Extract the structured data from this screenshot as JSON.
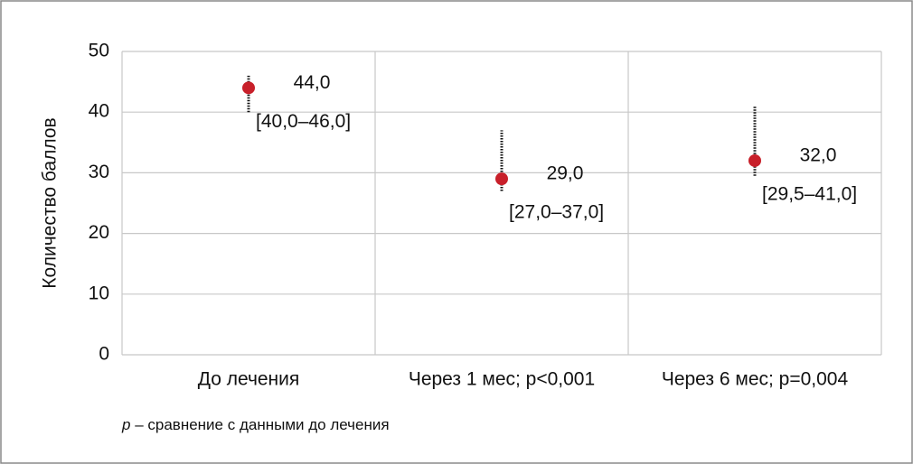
{
  "chart_data": {
    "type": "range-point",
    "ylabel": "Количество баллов",
    "categories": [
      "До лечения",
      "Через 1 мес; p<0,001",
      "Через 6 мес; p=0,004"
    ],
    "values": [
      44,
      29,
      32
    ],
    "value_labels": [
      "44,0",
      "29,0",
      "32,0"
    ],
    "low": [
      40,
      27,
      29.5
    ],
    "high": [
      46,
      37,
      41
    ],
    "range_labels": [
      "[40,0–46,0]",
      "[27,0–37,0]",
      "[29,5–41,0]"
    ],
    "color": "#c8202a",
    "ylim": [
      0,
      50
    ],
    "yticks": [
      0,
      10,
      20,
      30,
      40,
      50
    ],
    "grid": true,
    "footnote": {
      "symbol": "p",
      "text": "– сравнение с данными до лечения"
    }
  }
}
